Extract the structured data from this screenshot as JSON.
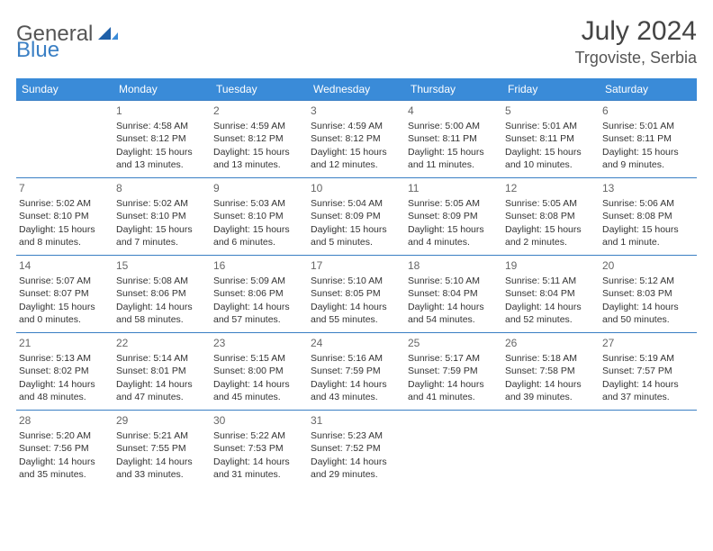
{
  "logo": {
    "part1": "General",
    "part2": "Blue"
  },
  "title": "July 2024",
  "location": "Trgoviste, Serbia",
  "colors": {
    "header_bg": "#3a8bd8",
    "header_text": "#ffffff",
    "border": "#3a7fc4",
    "text": "#333333",
    "title": "#444444",
    "daynum": "#666666",
    "logo_gray": "#555555",
    "logo_blue": "#3a7fc4"
  },
  "weekdays": [
    "Sunday",
    "Monday",
    "Tuesday",
    "Wednesday",
    "Thursday",
    "Friday",
    "Saturday"
  ],
  "weeks": [
    [
      {
        "day": "",
        "lines": []
      },
      {
        "day": "1",
        "lines": [
          "Sunrise: 4:58 AM",
          "Sunset: 8:12 PM",
          "Daylight: 15 hours and 13 minutes."
        ]
      },
      {
        "day": "2",
        "lines": [
          "Sunrise: 4:59 AM",
          "Sunset: 8:12 PM",
          "Daylight: 15 hours and 13 minutes."
        ]
      },
      {
        "day": "3",
        "lines": [
          "Sunrise: 4:59 AM",
          "Sunset: 8:12 PM",
          "Daylight: 15 hours and 12 minutes."
        ]
      },
      {
        "day": "4",
        "lines": [
          "Sunrise: 5:00 AM",
          "Sunset: 8:11 PM",
          "Daylight: 15 hours and 11 minutes."
        ]
      },
      {
        "day": "5",
        "lines": [
          "Sunrise: 5:01 AM",
          "Sunset: 8:11 PM",
          "Daylight: 15 hours and 10 minutes."
        ]
      },
      {
        "day": "6",
        "lines": [
          "Sunrise: 5:01 AM",
          "Sunset: 8:11 PM",
          "Daylight: 15 hours and 9 minutes."
        ]
      }
    ],
    [
      {
        "day": "7",
        "lines": [
          "Sunrise: 5:02 AM",
          "Sunset: 8:10 PM",
          "Daylight: 15 hours and 8 minutes."
        ]
      },
      {
        "day": "8",
        "lines": [
          "Sunrise: 5:02 AM",
          "Sunset: 8:10 PM",
          "Daylight: 15 hours and 7 minutes."
        ]
      },
      {
        "day": "9",
        "lines": [
          "Sunrise: 5:03 AM",
          "Sunset: 8:10 PM",
          "Daylight: 15 hours and 6 minutes."
        ]
      },
      {
        "day": "10",
        "lines": [
          "Sunrise: 5:04 AM",
          "Sunset: 8:09 PM",
          "Daylight: 15 hours and 5 minutes."
        ]
      },
      {
        "day": "11",
        "lines": [
          "Sunrise: 5:05 AM",
          "Sunset: 8:09 PM",
          "Daylight: 15 hours and 4 minutes."
        ]
      },
      {
        "day": "12",
        "lines": [
          "Sunrise: 5:05 AM",
          "Sunset: 8:08 PM",
          "Daylight: 15 hours and 2 minutes."
        ]
      },
      {
        "day": "13",
        "lines": [
          "Sunrise: 5:06 AM",
          "Sunset: 8:08 PM",
          "Daylight: 15 hours and 1 minute."
        ]
      }
    ],
    [
      {
        "day": "14",
        "lines": [
          "Sunrise: 5:07 AM",
          "Sunset: 8:07 PM",
          "Daylight: 15 hours and 0 minutes."
        ]
      },
      {
        "day": "15",
        "lines": [
          "Sunrise: 5:08 AM",
          "Sunset: 8:06 PM",
          "Daylight: 14 hours and 58 minutes."
        ]
      },
      {
        "day": "16",
        "lines": [
          "Sunrise: 5:09 AM",
          "Sunset: 8:06 PM",
          "Daylight: 14 hours and 57 minutes."
        ]
      },
      {
        "day": "17",
        "lines": [
          "Sunrise: 5:10 AM",
          "Sunset: 8:05 PM",
          "Daylight: 14 hours and 55 minutes."
        ]
      },
      {
        "day": "18",
        "lines": [
          "Sunrise: 5:10 AM",
          "Sunset: 8:04 PM",
          "Daylight: 14 hours and 54 minutes."
        ]
      },
      {
        "day": "19",
        "lines": [
          "Sunrise: 5:11 AM",
          "Sunset: 8:04 PM",
          "Daylight: 14 hours and 52 minutes."
        ]
      },
      {
        "day": "20",
        "lines": [
          "Sunrise: 5:12 AM",
          "Sunset: 8:03 PM",
          "Daylight: 14 hours and 50 minutes."
        ]
      }
    ],
    [
      {
        "day": "21",
        "lines": [
          "Sunrise: 5:13 AM",
          "Sunset: 8:02 PM",
          "Daylight: 14 hours and 48 minutes."
        ]
      },
      {
        "day": "22",
        "lines": [
          "Sunrise: 5:14 AM",
          "Sunset: 8:01 PM",
          "Daylight: 14 hours and 47 minutes."
        ]
      },
      {
        "day": "23",
        "lines": [
          "Sunrise: 5:15 AM",
          "Sunset: 8:00 PM",
          "Daylight: 14 hours and 45 minutes."
        ]
      },
      {
        "day": "24",
        "lines": [
          "Sunrise: 5:16 AM",
          "Sunset: 7:59 PM",
          "Daylight: 14 hours and 43 minutes."
        ]
      },
      {
        "day": "25",
        "lines": [
          "Sunrise: 5:17 AM",
          "Sunset: 7:59 PM",
          "Daylight: 14 hours and 41 minutes."
        ]
      },
      {
        "day": "26",
        "lines": [
          "Sunrise: 5:18 AM",
          "Sunset: 7:58 PM",
          "Daylight: 14 hours and 39 minutes."
        ]
      },
      {
        "day": "27",
        "lines": [
          "Sunrise: 5:19 AM",
          "Sunset: 7:57 PM",
          "Daylight: 14 hours and 37 minutes."
        ]
      }
    ],
    [
      {
        "day": "28",
        "lines": [
          "Sunrise: 5:20 AM",
          "Sunset: 7:56 PM",
          "Daylight: 14 hours and 35 minutes."
        ]
      },
      {
        "day": "29",
        "lines": [
          "Sunrise: 5:21 AM",
          "Sunset: 7:55 PM",
          "Daylight: 14 hours and 33 minutes."
        ]
      },
      {
        "day": "30",
        "lines": [
          "Sunrise: 5:22 AM",
          "Sunset: 7:53 PM",
          "Daylight: 14 hours and 31 minutes."
        ]
      },
      {
        "day": "31",
        "lines": [
          "Sunrise: 5:23 AM",
          "Sunset: 7:52 PM",
          "Daylight: 14 hours and 29 minutes."
        ]
      },
      {
        "day": "",
        "lines": []
      },
      {
        "day": "",
        "lines": []
      },
      {
        "day": "",
        "lines": []
      }
    ]
  ]
}
